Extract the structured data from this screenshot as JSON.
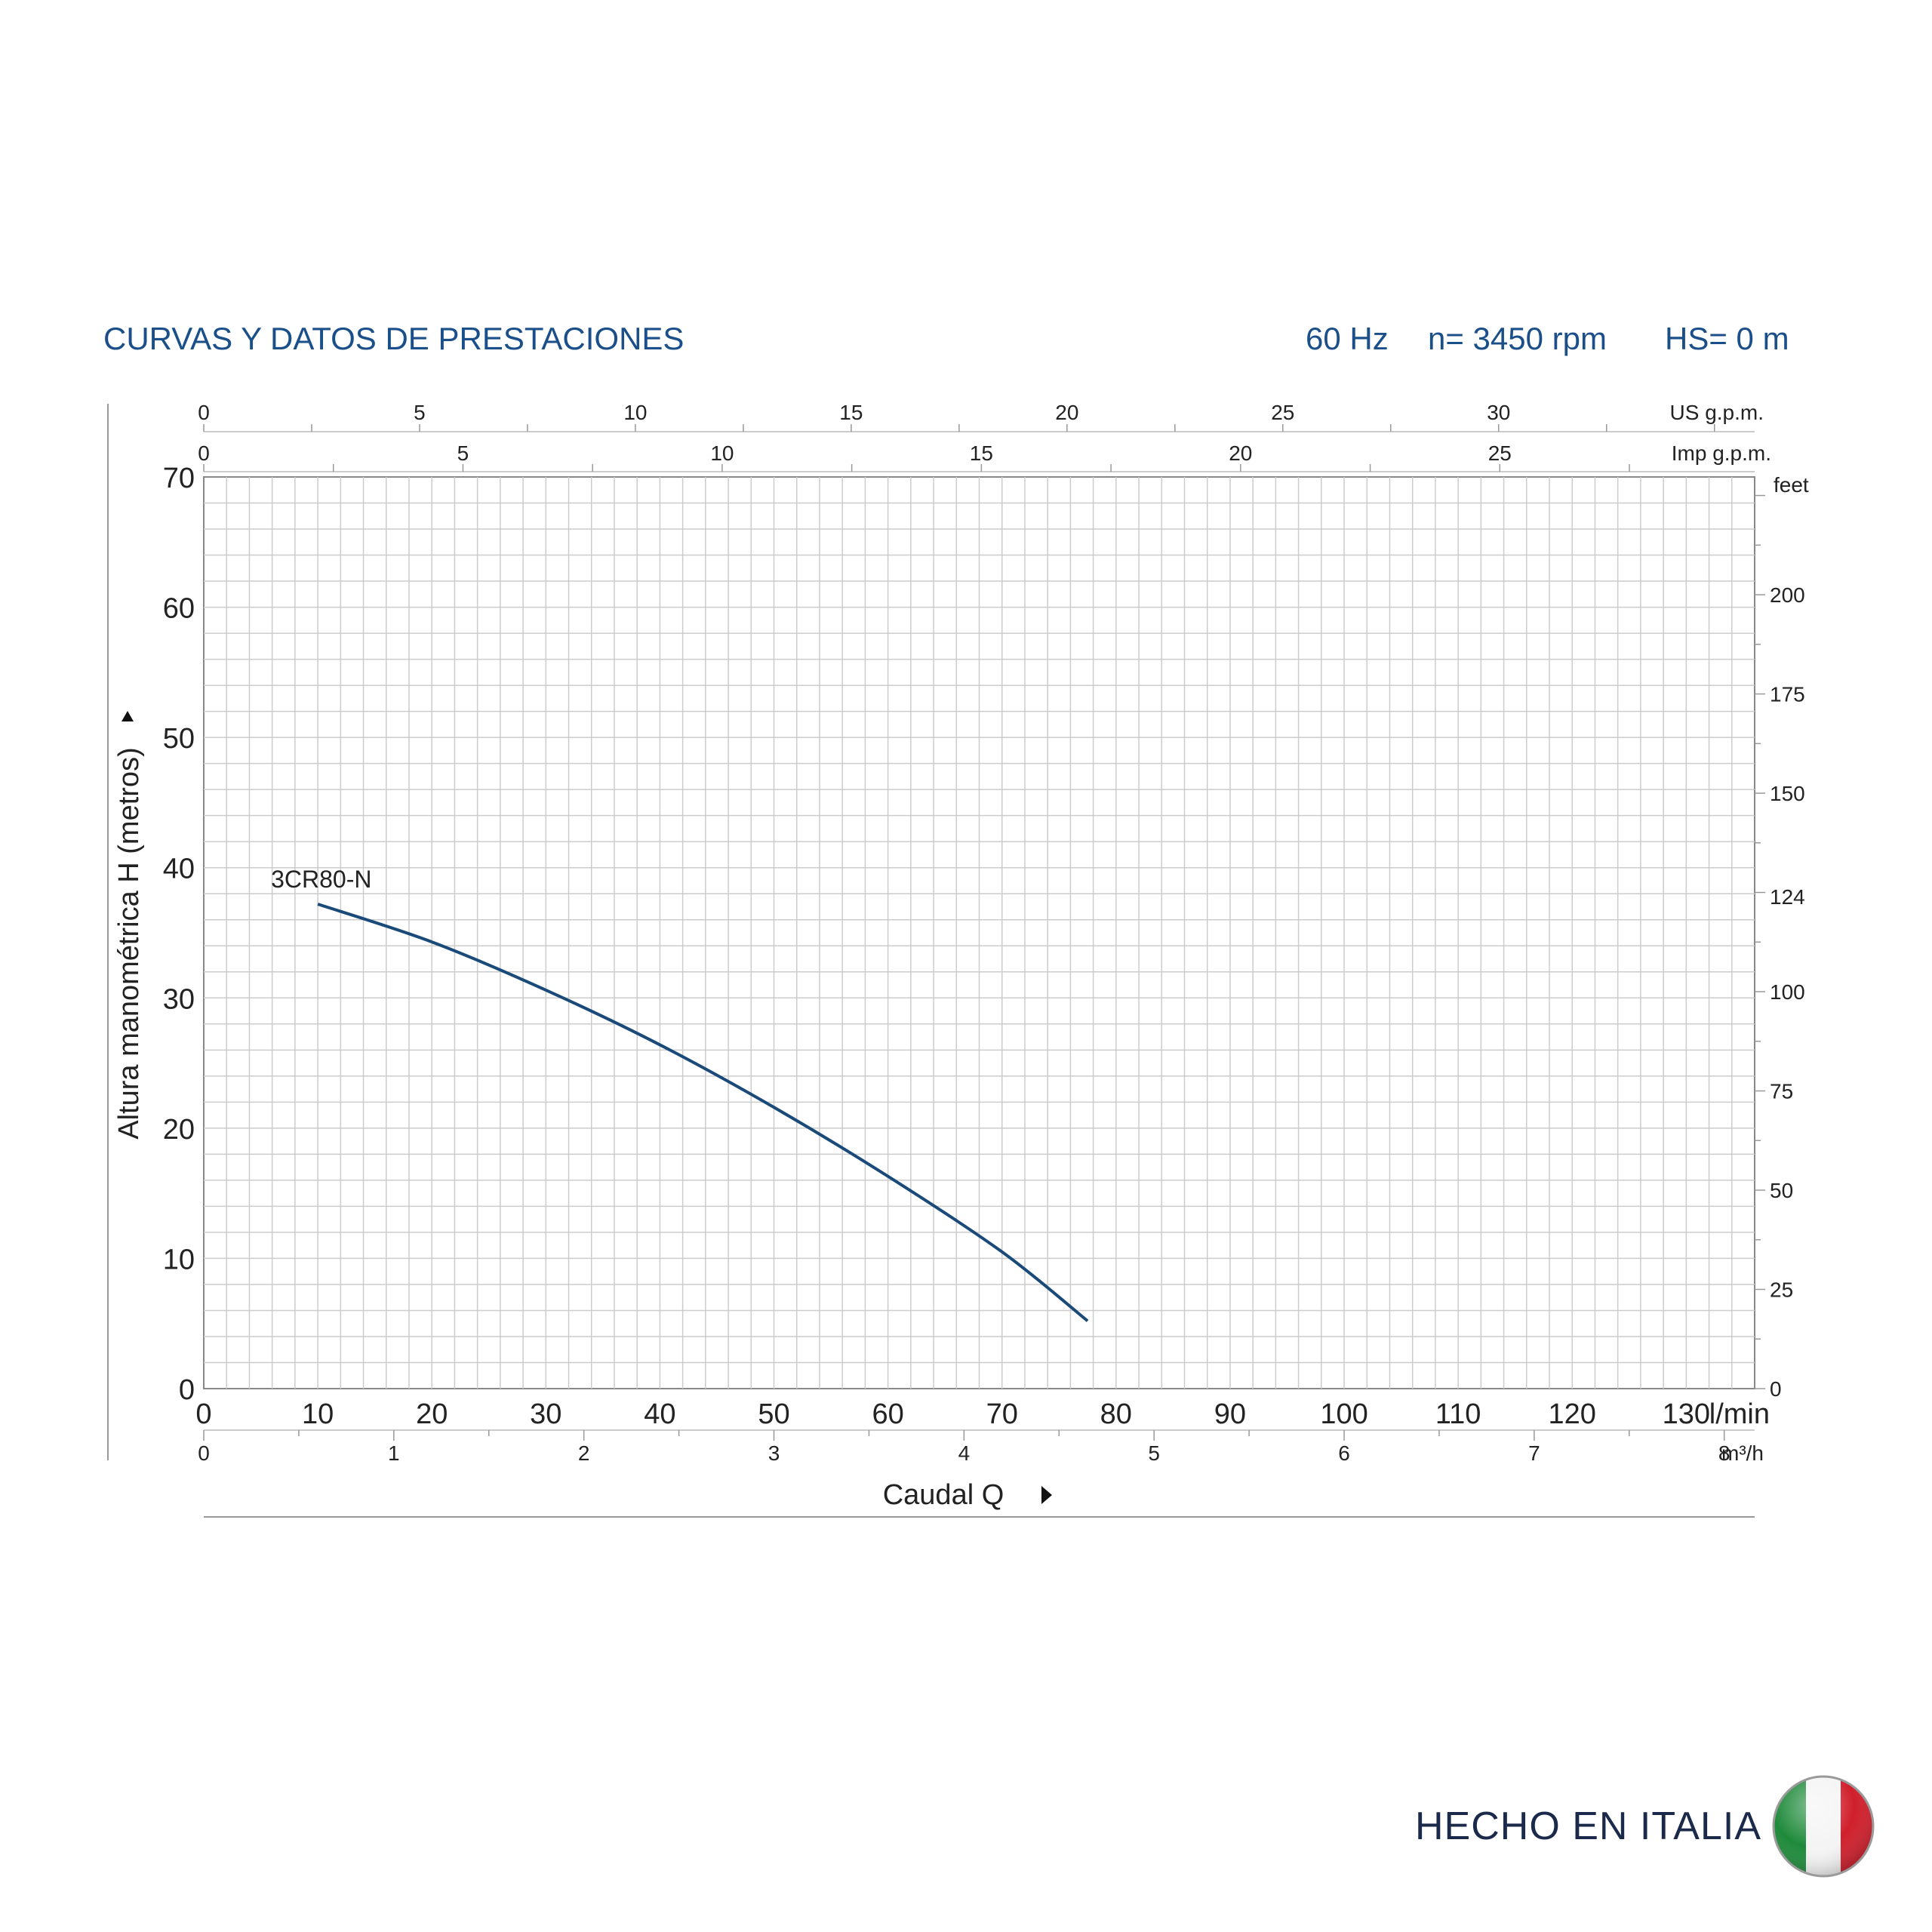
{
  "header": {
    "title": "CURVAS Y DATOS DE PRESTACIONES",
    "frequency": "60 Hz",
    "speed": "n= 3450 rpm",
    "suction_head": "HS= 0 m"
  },
  "chart_data": {
    "type": "line",
    "title": "CURVAS Y DATOS DE PRESTACIONES",
    "xlabel": "Caudal  Q",
    "ylabel": "Altura manométrica H   (metros)",
    "xlim": [
      0,
      136
    ],
    "ylim": [
      0,
      70
    ],
    "grid": true,
    "x_units": "l/min",
    "y_units": "metros",
    "x_ticks": [
      0,
      10,
      20,
      30,
      40,
      50,
      60,
      70,
      80,
      90,
      100,
      110,
      120,
      130
    ],
    "y_ticks": [
      0,
      10,
      20,
      30,
      40,
      50,
      60,
      70
    ],
    "secondary_axes": {
      "us_gpm": {
        "unit": "US g.p.m.",
        "ticks": [
          0,
          5,
          10,
          15,
          20,
          25,
          30
        ]
      },
      "imp_gpm": {
        "unit": "Imp g.p.m.",
        "ticks": [
          0,
          5,
          10,
          15,
          20,
          25
        ]
      },
      "m3h": {
        "unit": "m³/h",
        "ticks": [
          0,
          1,
          2,
          3,
          4,
          5,
          6,
          7,
          8
        ]
      },
      "feet": {
        "unit": "feet",
        "ticks": [
          0,
          25,
          50,
          75,
          100,
          124,
          150,
          175,
          200
        ]
      }
    },
    "series": [
      {
        "name": "3CR80-N",
        "color": "#1a4a7a",
        "x": [
          10,
          20,
          30,
          40,
          50,
          60,
          70,
          77.5
        ],
        "y": [
          37.2,
          34.3,
          30.6,
          26.4,
          21.6,
          16.3,
          10.5,
          5.2
        ]
      }
    ]
  },
  "footer": {
    "made_in": "HECHO EN ITALIA"
  },
  "colors": {
    "title": "#1b4f8a",
    "curve": "#1a4a7a",
    "grid": "#c8c8c8"
  }
}
